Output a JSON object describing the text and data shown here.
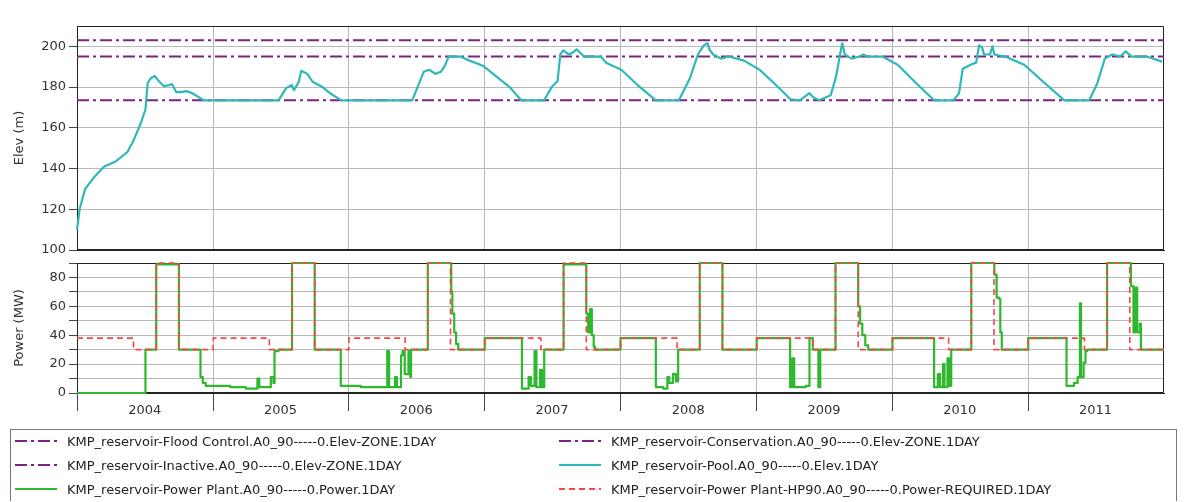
{
  "chart_data": [
    {
      "type": "line",
      "ylabel": "Elev (m)",
      "xlim": [
        "2004-01-01",
        "2012-01-01"
      ],
      "xticks": [
        {
          "value": "2004-01-01",
          "label": null
        },
        {
          "value": "2005-01-01",
          "label": null
        },
        {
          "value": "2006-01-01",
          "label": null
        },
        {
          "value": "2007-01-01",
          "label": null
        },
        {
          "value": "2008-01-01",
          "label": null
        },
        {
          "value": "2009-01-01",
          "label": null
        },
        {
          "value": "2010-01-01",
          "label": null
        },
        {
          "value": "2011-01-01",
          "label": null
        }
      ],
      "ylim": [
        100,
        210
      ],
      "yticks": [
        100,
        120,
        140,
        160,
        180,
        200
      ],
      "grid": true,
      "legend": "bottom",
      "tick_labels": "y",
      "series": [
        {
          "name": "KMP_reservoir-Flood Control.A0_90-----0.Elev-ZONE.1DAY",
          "color": "#7b2580",
          "line_style": "dashdot",
          "x": [
            "2004-01-01",
            "2012-01-01"
          ],
          "values": [
            203,
            203
          ]
        },
        {
          "name": "KMP_reservoir-Conservation.A0_90-----0.Elev-ZONE.1DAY",
          "color": "#7b2580",
          "line_style": "dashdot",
          "x": [
            "2004-01-01",
            "2012-01-01"
          ],
          "values": [
            195,
            195
          ]
        },
        {
          "name": "KMP_reservoir-Inactive.A0_90-----0.Elev-ZONE.1DAY",
          "color": "#7b2580",
          "line_style": "dashdot",
          "x": [
            "2004-01-01",
            "2012-01-01"
          ],
          "values": [
            173.5,
            173.5
          ]
        },
        {
          "name": "KMP_reservoir-Pool.A0_90-----0.Elev.1DAY",
          "color": "#2fb8b8",
          "x": [
            "2004-01-01",
            "2004-01-08",
            "2004-01-23",
            "2004-02-17",
            "2004-03-14",
            "2004-04-14",
            "2004-05-15",
            "2004-05-30",
            "2004-06-20",
            "2004-07-03",
            "2004-07-09",
            "2004-07-18",
            "2004-07-28",
            "2004-08-05",
            "2004-08-21",
            "2004-09-05",
            "2004-09-12",
            "2004-09-24",
            "2004-10-06",
            "2004-10-21",
            "2004-11-06",
            "2004-12-07",
            "2005-06-26",
            "2005-07-16",
            "2005-08-01",
            "2005-08-06",
            "2005-08-19",
            "2005-08-26",
            "2005-09-11",
            "2005-09-26",
            "2005-10-22",
            "2005-11-11",
            "2005-12-12",
            "2006-06-20",
            "2006-06-30",
            "2006-07-21",
            "2006-08-05",
            "2006-08-21",
            "2006-09-05",
            "2006-09-16",
            "2006-09-26",
            "2006-10-27",
            "2006-11-21",
            "2006-12-27",
            "2007-02-06",
            "2007-03-09",
            "2007-04-09",
            "2007-06-10",
            "2007-06-30",
            "2007-07-16",
            "2007-07-23",
            "2007-07-31",
            "2007-08-15",
            "2007-08-26",
            "2007-09-05",
            "2007-09-25",
            "2007-11-09",
            "2007-11-23",
            "2008-01-03",
            "2008-02-13",
            "2008-04-05",
            "2008-06-06",
            "2008-07-06",
            "2008-07-27",
            "2008-08-12",
            "2008-08-22",
            "2008-08-27",
            "2008-09-06",
            "2008-09-27",
            "2008-10-18",
            "2008-11-28",
            "2009-01-09",
            "2009-02-19",
            "2009-04-02",
            "2009-04-27",
            "2009-05-23",
            "2009-06-02",
            "2009-06-18",
            "2009-07-19",
            "2009-08-03",
            "2009-08-13",
            "2009-08-19",
            "2009-08-26",
            "2009-09-13",
            "2009-10-04",
            "2009-10-15",
            "2009-10-25",
            "2009-12-05",
            "2010-01-15",
            "2010-03-08",
            "2010-04-23",
            "2010-06-14",
            "2010-06-29",
            "2010-07-09",
            "2010-07-30",
            "2010-08-14",
            "2010-08-22",
            "2010-08-30",
            "2010-09-04",
            "2010-09-20",
            "2010-09-27",
            "2010-10-02",
            "2010-10-31",
            "2010-12-21",
            "2011-02-11",
            "2011-04-08",
            "2011-06-14",
            "2011-07-05",
            "2011-07-26",
            "2011-08-15",
            "2011-09-05",
            "2011-09-20",
            "2011-10-06",
            "2011-11-16",
            "2011-12-27"
          ],
          "values": [
            110,
            120,
            130,
            136,
            141,
            143.5,
            148,
            153,
            162,
            169,
            182,
            184.5,
            185.5,
            183.5,
            180.5,
            181,
            181.5,
            177.5,
            177.5,
            178,
            177,
            173.5,
            173.5,
            179.5,
            181,
            178.5,
            182.5,
            188,
            186.5,
            182.5,
            180,
            177,
            173.5,
            173.5,
            178,
            187.5,
            188.5,
            186.5,
            187.5,
            190.5,
            195,
            195,
            193,
            190.5,
            184.5,
            180,
            173.5,
            173.5,
            180,
            183,
            196,
            198,
            196,
            197,
            198.5,
            195,
            195,
            192,
            188.5,
            181.5,
            173.5,
            173.5,
            184.5,
            196,
            200.5,
            201.5,
            198.5,
            196,
            194,
            195,
            193,
            188.5,
            181.5,
            174,
            173.5,
            177,
            175,
            173.5,
            176,
            185.5,
            196,
            201.5,
            196,
            194,
            195,
            196,
            195,
            195,
            191,
            181.5,
            173.5,
            173.5,
            177,
            189,
            191,
            192,
            200.5,
            199.5,
            196,
            196,
            200,
            196,
            195,
            191,
            182.5,
            173.5,
            173.5,
            181.5,
            194,
            196,
            195,
            197.5,
            195,
            195,
            192.5
          ]
        }
      ]
    },
    {
      "type": "step",
      "ylabel": "Power (MW)",
      "xlim": [
        "2004-01-01",
        "2012-01-01"
      ],
      "xticks": [
        {
          "value": "2004-01-01",
          "label": null
        },
        {
          "value": "2004-07-01",
          "label": "2004"
        },
        {
          "value": "2005-01-01",
          "label": null
        },
        {
          "value": "2005-07-01",
          "label": "2005"
        },
        {
          "value": "2006-01-01",
          "label": null
        },
        {
          "value": "2006-07-01",
          "label": "2006"
        },
        {
          "value": "2007-01-01",
          "label": null
        },
        {
          "value": "2007-07-01",
          "label": "2007"
        },
        {
          "value": "2008-01-01",
          "label": null
        },
        {
          "value": "2008-07-01",
          "label": "2008"
        },
        {
          "value": "2009-01-01",
          "label": null
        },
        {
          "value": "2009-07-01",
          "label": "2009"
        },
        {
          "value": "2010-01-01",
          "label": null
        },
        {
          "value": "2010-07-01",
          "label": "2010"
        },
        {
          "value": "2011-01-01",
          "label": null
        },
        {
          "value": "2011-07-01",
          "label": "2011"
        }
      ],
      "ylim": [
        0,
        90
      ],
      "yticks": [
        0,
        {
          "value": 10,
          "label": null
        },
        20,
        {
          "value": 30,
          "label": null
        },
        40,
        {
          "value": 50,
          "label": null
        },
        60,
        {
          "value": 70,
          "label": null
        },
        80,
        {
          "value": 90,
          "label": null
        }
      ],
      "grid": true,
      "legend": "bottom",
      "series": [
        {
          "name": "KMP_reservoir-Power Plant.A0_90-----0.Power.1DAY",
          "color": "#2db82d",
          "x": [
            "2004-01-01",
            "2004-07-03",
            "2004-08-01",
            "2004-10-01",
            "2004-11-28",
            "2004-12-04",
            "2004-12-12",
            "2005-02-16",
            "2005-03-30",
            "2005-04-30",
            "2005-05-05",
            "2005-06-05",
            "2005-06-12",
            "2005-06-15",
            "2005-06-26",
            "2005-08-01",
            "2005-10-01",
            "2005-12-10",
            "2006-02-02",
            "2006-04-14",
            "2006-04-19",
            "2006-05-05",
            "2006-05-10",
            "2006-05-21",
            "2006-05-25",
            "2006-05-31",
            "2006-06-10",
            "2006-06-15",
            "2006-06-17",
            "2006-08-01",
            "2006-10-03",
            "2006-10-06",
            "2006-10-11",
            "2006-10-16",
            "2006-10-22",
            "2007-01-01",
            "2007-04-11",
            "2007-04-29",
            "2007-05-05",
            "2007-05-15",
            "2007-05-20",
            "2007-05-30",
            "2007-06-04",
            "2007-06-10",
            "2007-08-01",
            "2007-10-01",
            "2007-10-06",
            "2007-10-11",
            "2007-10-16",
            "2007-10-21",
            "2007-10-25",
            "2008-01-01",
            "2008-04-05",
            "2008-04-25",
            "2008-05-06",
            "2008-05-11",
            "2008-05-21",
            "2008-05-29",
            "2008-06-04",
            "2008-08-01",
            "2008-10-01",
            "2009-01-01",
            "2009-04-01",
            "2009-04-07",
            "2009-04-12",
            "2009-05-13",
            "2009-05-23",
            "2009-06-01",
            "2009-06-16",
            "2009-06-21",
            "2009-08-01",
            "2009-10-01",
            "2009-10-06",
            "2009-10-12",
            "2009-10-20",
            "2009-10-28",
            "2010-01-01",
            "2010-04-23",
            "2010-05-03",
            "2010-05-09",
            "2010-05-17",
            "2010-05-21",
            "2010-05-29",
            "2010-06-03",
            "2010-06-08",
            "2010-08-01",
            "2010-10-02",
            "2010-10-08",
            "2010-10-15",
            "2010-10-18",
            "2010-10-22",
            "2011-01-01",
            "2011-04-14",
            "2011-05-04",
            "2011-05-14",
            "2011-05-20",
            "2011-05-23",
            "2011-05-30",
            "2011-06-04",
            "2011-06-09",
            "2011-08-01",
            "2011-10-04",
            "2011-10-11",
            "2011-10-16",
            "2011-10-21",
            "2011-10-28",
            "2011-10-31",
            "2012-01-01"
          ],
          "values": [
            0,
            30,
            89,
            30,
            11,
            7,
            5,
            4,
            3,
            10,
            4,
            11,
            7,
            29,
            30,
            90,
            30,
            5,
            4,
            29,
            4,
            11,
            4,
            26,
            29,
            13,
            29,
            11,
            30,
            90,
            70,
            55,
            42,
            34,
            30,
            38,
            3,
            11,
            5,
            29,
            4,
            16,
            4,
            30,
            89,
            55,
            42,
            58,
            40,
            32,
            30,
            38,
            4,
            3,
            11,
            7,
            13,
            8,
            30,
            90,
            30,
            38,
            4,
            24,
            4,
            5,
            38,
            30,
            4,
            30,
            90,
            60,
            48,
            40,
            33,
            30,
            38,
            4,
            13,
            4,
            20,
            4,
            24,
            5,
            30,
            90,
            82,
            66,
            65,
            42,
            30,
            38,
            5,
            7,
            11,
            62,
            11,
            21,
            29,
            30,
            90,
            74,
            42,
            73,
            42,
            48,
            30,
            30
          ]
        },
        {
          "name": "KMP_reservoir-Power Plant-HP90.A0_90-----0.Power-REQUIRED.1DAY",
          "color": "#ff4343",
          "line_style": "dashed",
          "x": [
            "2004-01-01",
            "2004-06-01",
            "2004-08-01",
            "2004-10-01",
            "2005-01-01",
            "2005-06-01",
            "2005-08-01",
            "2005-10-01",
            "2006-01-01",
            "2006-06-01",
            "2006-08-01",
            "2006-10-01",
            "2007-01-01",
            "2007-06-01",
            "2007-08-01",
            "2007-10-01",
            "2008-01-01",
            "2008-06-01",
            "2008-08-01",
            "2008-10-01",
            "2009-01-01",
            "2009-06-01",
            "2009-08-01",
            "2009-10-01",
            "2010-01-01",
            "2010-06-01",
            "2010-08-01",
            "2010-10-01",
            "2011-01-01",
            "2011-06-01",
            "2011-08-01",
            "2011-10-01",
            "2012-01-01"
          ],
          "values": [
            38,
            30,
            90,
            30,
            38,
            30,
            90,
            30,
            38,
            30,
            90,
            30,
            38,
            30,
            90,
            30,
            38,
            30,
            90,
            30,
            38,
            30,
            90,
            30,
            38,
            30,
            90,
            30,
            38,
            30,
            90,
            30,
            30
          ]
        }
      ]
    }
  ]
}
